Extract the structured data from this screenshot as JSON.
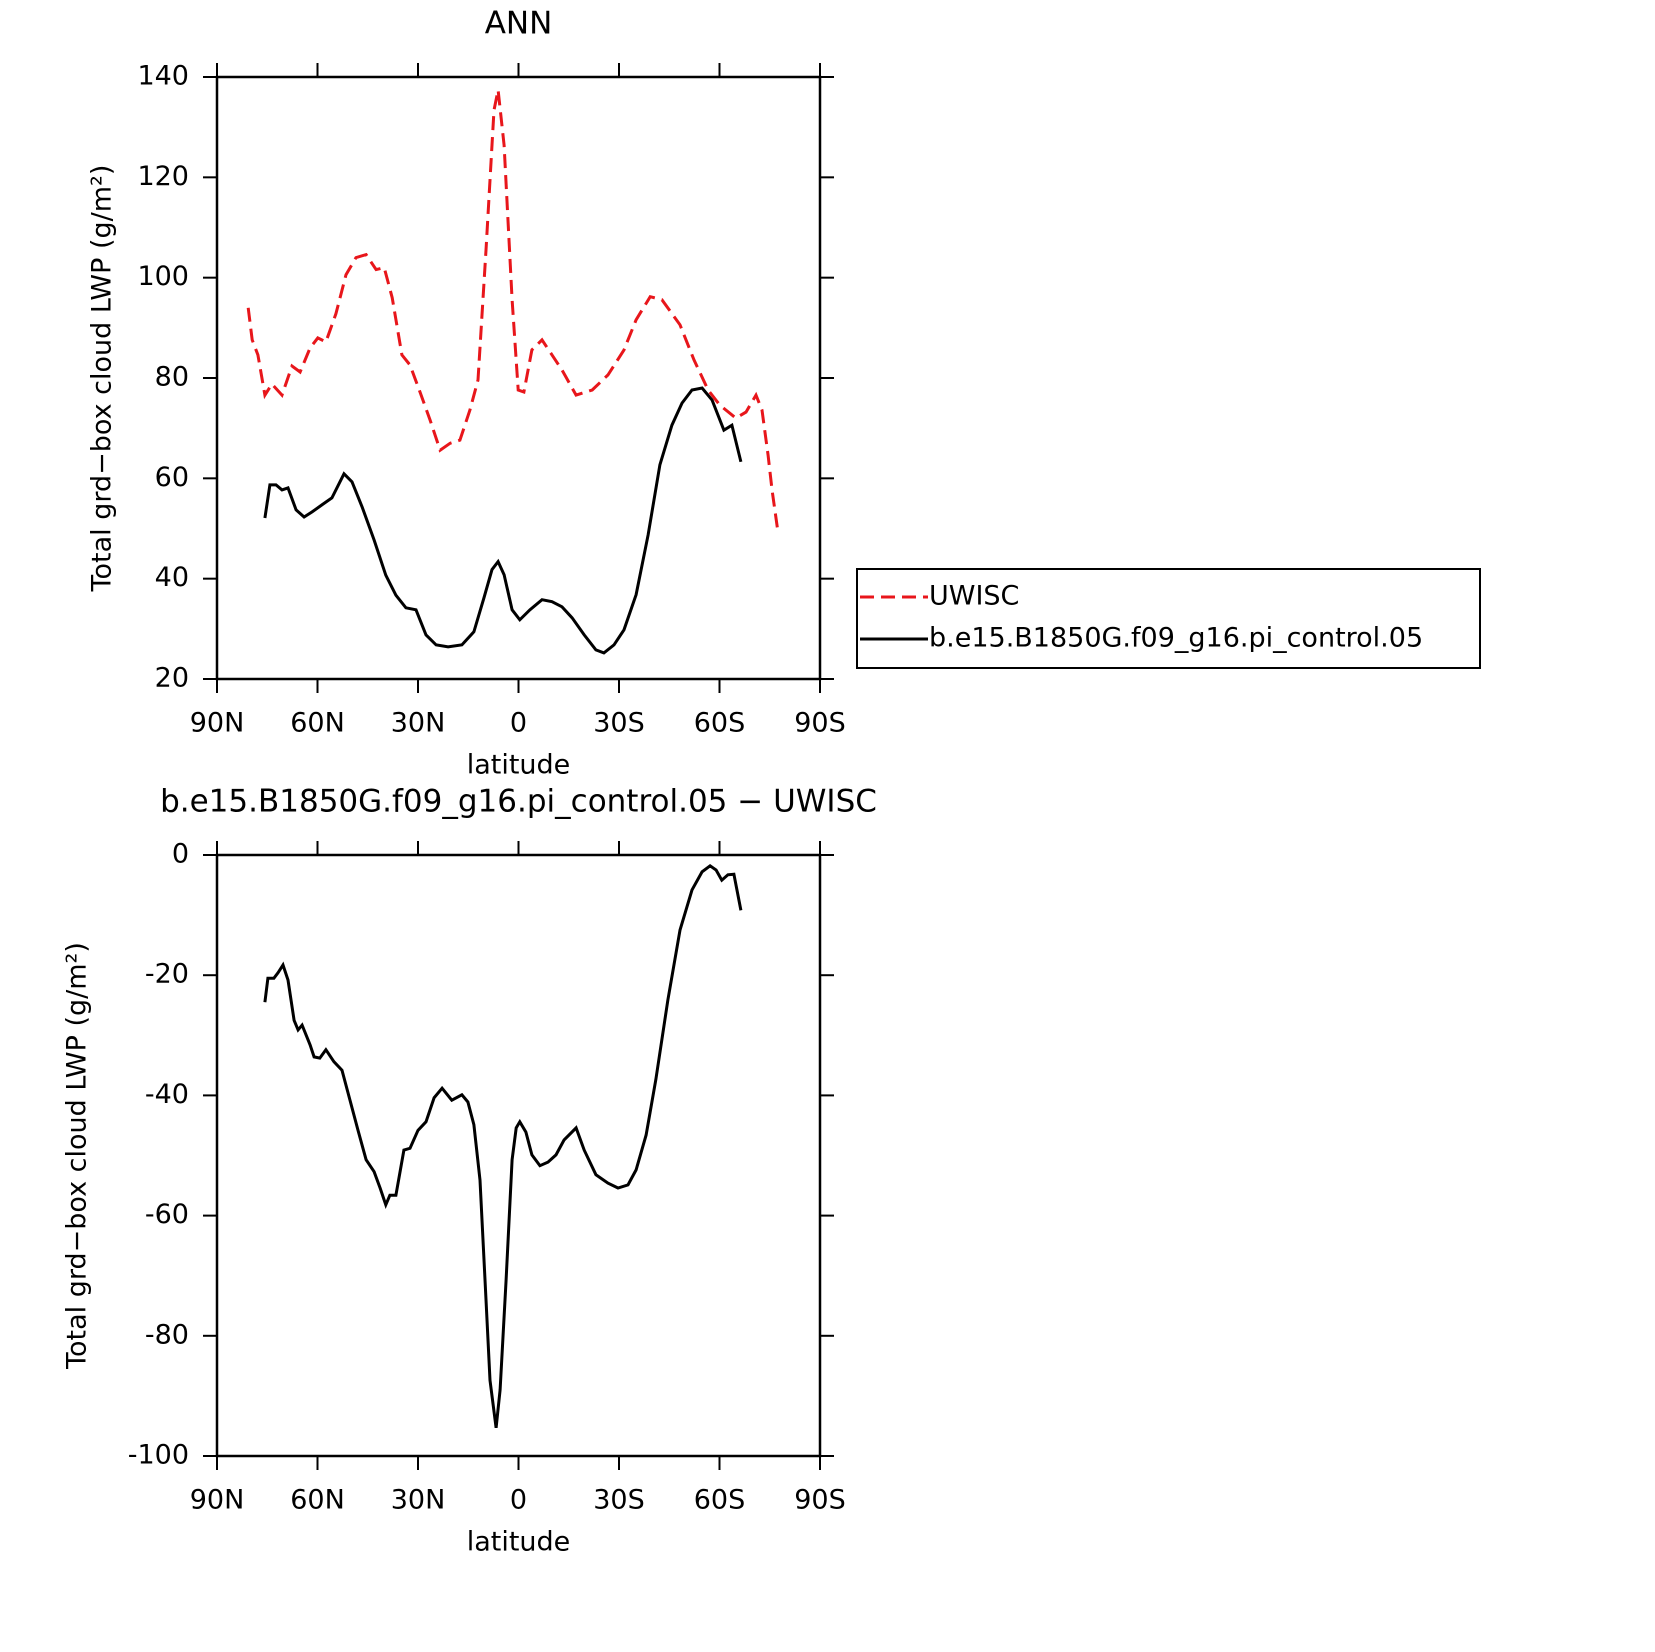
{
  "chart_data": [
    {
      "type": "line",
      "title": "ANN",
      "x_label": "latitude",
      "y_label": "Total grd−box cloud LWP (g/m²)",
      "xlim": [
        90,
        -90
      ],
      "xticks": [
        {
          "value": 90,
          "label": "90N"
        },
        {
          "value": 60,
          "label": "60N"
        },
        {
          "value": 30,
          "label": "30N"
        },
        0,
        {
          "value": -30,
          "label": "30S"
        },
        {
          "value": -60,
          "label": "60S"
        },
        {
          "value": -90,
          "label": "90S"
        }
      ],
      "ylim": [
        20,
        140
      ],
      "yticks": [
        20,
        40,
        60,
        80,
        100,
        120,
        140
      ],
      "legend": "right",
      "series": [
        {
          "name": "UWISC",
          "color": "#e8161b",
          "dash": "dashed",
          "x": [
            80.7,
            79.5,
            77.8,
            75.7,
            73.6,
            70.6,
            67.6,
            65.2,
            62.2,
            59.9,
            57.5,
            54.5,
            51.5,
            48.5,
            45.5,
            42.5,
            40.1,
            37.7,
            34.8,
            32.4,
            29.4,
            26.4,
            23.4,
            20.4,
            17.5,
            14.5,
            12.1,
            9.7,
            7.3,
            6.1,
            4.3,
            1.9,
            0.1,
            -1.6,
            -4.0,
            -7.0,
            -10.0,
            -13.0,
            -17.2,
            -22.0,
            -26.7,
            -31.5,
            -35.1,
            -39.3,
            -42.8,
            -48.2,
            -52.4,
            -56.6,
            -60.1,
            -64.9,
            -67.9,
            -70.9,
            -72.7,
            -74.5,
            -75.7,
            -77.5
          ],
          "values": [
            94,
            87.6,
            84.6,
            76.6,
            78.8,
            76.6,
            82.4,
            81.2,
            86,
            88,
            87.2,
            92.8,
            100.6,
            104,
            104.6,
            101.6,
            102,
            96,
            84.6,
            82.6,
            77.2,
            71.6,
            65.6,
            67,
            67.6,
            73.6,
            79.6,
            105.5,
            133.4,
            137.4,
            126.4,
            95.6,
            77.6,
            77.2,
            85.6,
            87.6,
            84.6,
            81.6,
            76.6,
            77.6,
            80.6,
            85.6,
            91.6,
            96.2,
            95.6,
            90.6,
            83.6,
            77.6,
            74.6,
            72,
            73.2,
            76.6,
            73.6,
            64.6,
            57.6,
            49.1
          ]
        },
        {
          "name": "b.e15.B1850G.f09_g16.pi_control.05",
          "color": "#000000",
          "dash": "solid",
          "x": [
            75.7,
            74.2,
            72.4,
            70.6,
            68.8,
            66.4,
            64.0,
            61.6,
            58.7,
            55.7,
            52.1,
            49.7,
            46.7,
            43.1,
            39.6,
            36.6,
            33.6,
            30.6,
            27.6,
            24.6,
            21.0,
            16.9,
            13.3,
            10.3,
            7.9,
            6.1,
            4.3,
            1.9,
            -0.4,
            -3.4,
            -7.0,
            -10.0,
            -13.0,
            -16.0,
            -19.6,
            -23.1,
            -25.5,
            -28.5,
            -31.5,
            -35.1,
            -38.7,
            -42.2,
            -45.8,
            -48.8,
            -51.8,
            -54.8,
            -57.8,
            -61.3,
            -63.7,
            -66.4
          ],
          "values": [
            52.1,
            58.7,
            58.7,
            57.7,
            58.1,
            53.7,
            52.3,
            53.3,
            54.7,
            56.1,
            60.9,
            59.3,
            54.3,
            47.7,
            40.7,
            36.7,
            34.2,
            33.8,
            28.8,
            26.8,
            26.4,
            26.8,
            29.4,
            36.2,
            41.8,
            43.4,
            40.8,
            33.8,
            31.8,
            33.8,
            35.8,
            35.4,
            34.4,
            32.2,
            28.8,
            25.8,
            25.2,
            26.8,
            29.8,
            36.8,
            48.7,
            62.7,
            70.6,
            75.0,
            77.6,
            78.0,
            75.6,
            69.6,
            70.6,
            63.3
          ]
        }
      ]
    },
    {
      "type": "line",
      "title": "b.e15.B1850G.f09_g16.pi_control.05 − UWISC",
      "x_label": "latitude",
      "y_label": "Total grd−box cloud LWP (g/m²)",
      "xlim": [
        90,
        -90
      ],
      "xticks": [
        {
          "value": 90,
          "label": "90N"
        },
        {
          "value": 60,
          "label": "60N"
        },
        {
          "value": 30,
          "label": "30N"
        },
        0,
        {
          "value": -30,
          "label": "30S"
        },
        {
          "value": -60,
          "label": "60S"
        },
        {
          "value": -90,
          "label": "90S"
        }
      ],
      "ylim": [
        -100,
        0
      ],
      "yticks": [
        -100,
        -80,
        -60,
        -40,
        -20,
        0
      ],
      "series": [
        {
          "color": "#000000",
          "dash": "solid",
          "x": [
            75.7,
            74.8,
            73.0,
            71.8,
            70.3,
            68.8,
            67.0,
            65.8,
            64.6,
            62.2,
            61.0,
            59.3,
            57.5,
            55.1,
            52.7,
            50.3,
            47.9,
            45.5,
            43.1,
            41.3,
            39.6,
            38.4,
            36.6,
            34.2,
            32.4,
            30.0,
            27.6,
            25.2,
            22.8,
            19.9,
            16.9,
            15.1,
            13.3,
            11.5,
            9.7,
            8.5,
            6.7,
            5.5,
            3.7,
            1.9,
            0.7,
            -0.4,
            -2.2,
            -4.0,
            -6.4,
            -8.8,
            -11.2,
            -13.6,
            -17.2,
            -19.6,
            -23.1,
            -26.7,
            -29.7,
            -32.7,
            -35.1,
            -38.1,
            -41.0,
            -44.6,
            -48.2,
            -51.8,
            -54.8,
            -57.2,
            -59.0,
            -60.7,
            -62.5,
            -64.3,
            -66.4
          ],
          "values": [
            -24.5,
            -20.5,
            -20.5,
            -19.6,
            -18.3,
            -20.8,
            -27.5,
            -29.1,
            -28.3,
            -31.6,
            -33.6,
            -33.8,
            -32.4,
            -34.4,
            -35.8,
            -40.8,
            -45.8,
            -50.7,
            -52.7,
            -55.4,
            -58.2,
            -56.6,
            -56.6,
            -49.1,
            -48.8,
            -45.8,
            -44.4,
            -40.4,
            -38.8,
            -40.8,
            -39.9,
            -41.1,
            -44.9,
            -54.1,
            -74.0,
            -87.4,
            -95.3,
            -89.0,
            -70.7,
            -50.7,
            -45.4,
            -44.4,
            -46.1,
            -49.9,
            -51.7,
            -51.1,
            -49.9,
            -47.4,
            -45.4,
            -49.1,
            -53.2,
            -54.6,
            -55.4,
            -54.9,
            -52.4,
            -46.6,
            -37.4,
            -24.1,
            -12.5,
            -5.8,
            -2.8,
            -1.8,
            -2.5,
            -4.2,
            -3.3,
            -3.2,
            -9.2
          ]
        }
      ]
    }
  ]
}
